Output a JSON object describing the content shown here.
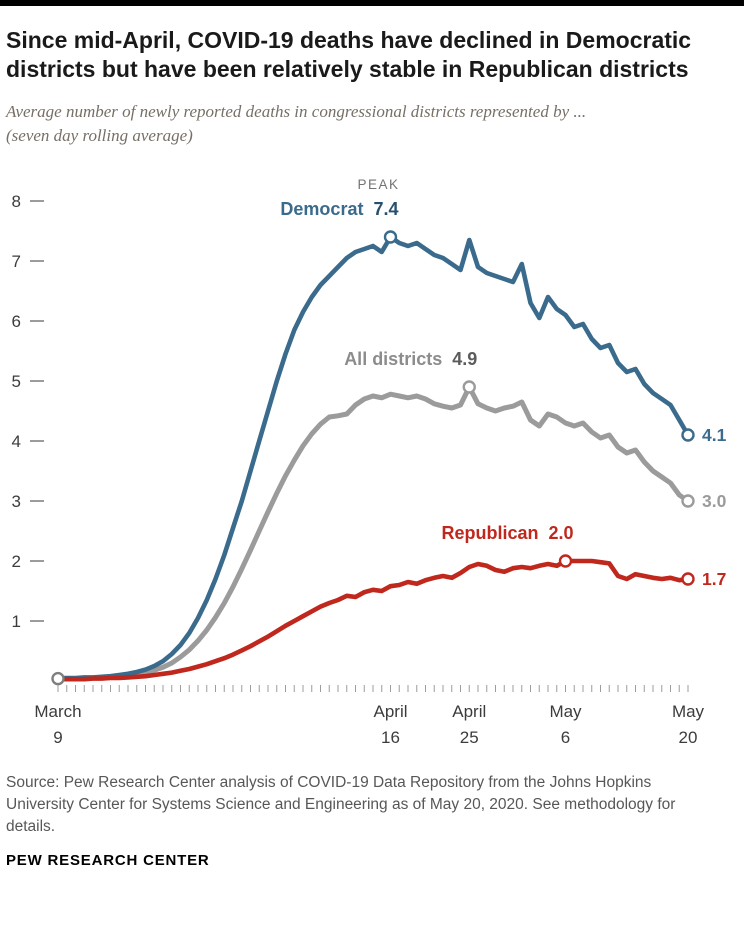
{
  "header": {
    "title": "Since mid-April, COVID-19 deaths have declined in Democratic districts but have been relatively stable in Republican districts",
    "subtitle": "Average number of newly reported deaths in congressional districts represented by ... (seven day rolling average)"
  },
  "chart_data": {
    "type": "line",
    "title": "Average number of newly reported COVID-19 deaths in congressional districts, seven day rolling average",
    "x_axis": {
      "unit": "date",
      "start": "March 9",
      "end": "May 20",
      "n_days": 73,
      "tick_labels": [
        {
          "day": 0,
          "line1": "March",
          "line2": "9"
        },
        {
          "day": 38,
          "line1": "April",
          "line2": "16"
        },
        {
          "day": 47,
          "line1": "April",
          "line2": "25"
        },
        {
          "day": 58,
          "line1": "May",
          "line2": "6"
        },
        {
          "day": 72,
          "line1": "May",
          "line2": "20"
        }
      ]
    },
    "y_axis": {
      "min": 0,
      "max": 8,
      "ticks": [
        1,
        2,
        3,
        4,
        5,
        6,
        7,
        8
      ]
    },
    "series": [
      {
        "name": "Democrat",
        "slug": "democrat",
        "line_color": "#3a6b8c",
        "label_color": "#3a6b8c",
        "value_color": "#27506f",
        "stroke_width": 4.6,
        "peak": {
          "day": 38,
          "value": 7.4,
          "label": "7.4",
          "caption": "PEAK"
        },
        "end": {
          "day": 72,
          "value": 4.1,
          "label": "4.1"
        },
        "values": [
          0.05,
          0.05,
          0.05,
          0.06,
          0.06,
          0.07,
          0.08,
          0.1,
          0.12,
          0.15,
          0.19,
          0.25,
          0.33,
          0.45,
          0.6,
          0.8,
          1.05,
          1.35,
          1.7,
          2.1,
          2.55,
          3.0,
          3.5,
          4.0,
          4.5,
          5.0,
          5.45,
          5.85,
          6.15,
          6.4,
          6.6,
          6.75,
          6.9,
          7.05,
          7.15,
          7.2,
          7.25,
          7.15,
          7.4,
          7.3,
          7.25,
          7.3,
          7.2,
          7.1,
          7.05,
          6.95,
          6.85,
          7.35,
          6.9,
          6.8,
          6.75,
          6.7,
          6.65,
          6.95,
          6.3,
          6.05,
          6.4,
          6.2,
          6.1,
          5.9,
          5.95,
          5.7,
          5.55,
          5.6,
          5.3,
          5.15,
          5.2,
          4.95,
          4.8,
          4.7,
          4.6,
          4.35,
          4.1
        ]
      },
      {
        "name": "All districts",
        "slug": "all-districts",
        "line_color": "#9b9b9b",
        "label_color": "#8c8c8c",
        "value_color": "#5c5c5c",
        "stroke_width": 5,
        "start_marker": true,
        "peak": {
          "day": 47,
          "value": 4.9,
          "label": "4.9"
        },
        "end": {
          "day": 72,
          "value": 3.0,
          "label": "3.0"
        },
        "values": [
          0.04,
          0.04,
          0.04,
          0.05,
          0.05,
          0.06,
          0.07,
          0.08,
          0.09,
          0.11,
          0.14,
          0.18,
          0.23,
          0.3,
          0.4,
          0.52,
          0.67,
          0.85,
          1.06,
          1.3,
          1.57,
          1.87,
          2.18,
          2.5,
          2.82,
          3.13,
          3.42,
          3.68,
          3.92,
          4.12,
          4.28,
          4.4,
          4.42,
          4.45,
          4.6,
          4.7,
          4.75,
          4.72,
          4.78,
          4.75,
          4.72,
          4.75,
          4.7,
          4.62,
          4.58,
          4.55,
          4.6,
          4.9,
          4.62,
          4.55,
          4.5,
          4.55,
          4.58,
          4.65,
          4.35,
          4.25,
          4.45,
          4.4,
          4.3,
          4.25,
          4.3,
          4.15,
          4.05,
          4.1,
          3.9,
          3.8,
          3.85,
          3.65,
          3.5,
          3.4,
          3.3,
          3.1,
          3.0
        ]
      },
      {
        "name": "Republican",
        "slug": "republican",
        "line_color": "#c0271d",
        "label_color": "#c0271d",
        "value_color": "#c0271d",
        "stroke_width": 4.6,
        "peak": {
          "day": 58,
          "value": 2.0,
          "label": "2.0"
        },
        "end": {
          "day": 72,
          "value": 1.7,
          "label": "1.7"
        },
        "values": [
          0.03,
          0.03,
          0.03,
          0.03,
          0.04,
          0.04,
          0.05,
          0.05,
          0.06,
          0.07,
          0.08,
          0.1,
          0.12,
          0.14,
          0.17,
          0.2,
          0.24,
          0.28,
          0.33,
          0.38,
          0.44,
          0.51,
          0.58,
          0.66,
          0.74,
          0.83,
          0.92,
          1.0,
          1.08,
          1.16,
          1.24,
          1.3,
          1.35,
          1.42,
          1.4,
          1.48,
          1.52,
          1.5,
          1.58,
          1.6,
          1.65,
          1.62,
          1.68,
          1.72,
          1.75,
          1.72,
          1.8,
          1.9,
          1.95,
          1.92,
          1.85,
          1.82,
          1.88,
          1.9,
          1.88,
          1.92,
          1.95,
          1.92,
          2.0,
          2.0,
          2.0,
          2.0,
          1.98,
          1.96,
          1.75,
          1.7,
          1.78,
          1.75,
          1.72,
          1.7,
          1.72,
          1.68,
          1.7
        ]
      }
    ]
  },
  "footer": {
    "source": "Source: Pew Research Center analysis of COVID-19 Data Repository from the Johns Hopkins University Center for Systems Science and Engineering as of May 20, 2020. See methodology for details.",
    "brand": "PEW RESEARCH CENTER"
  }
}
